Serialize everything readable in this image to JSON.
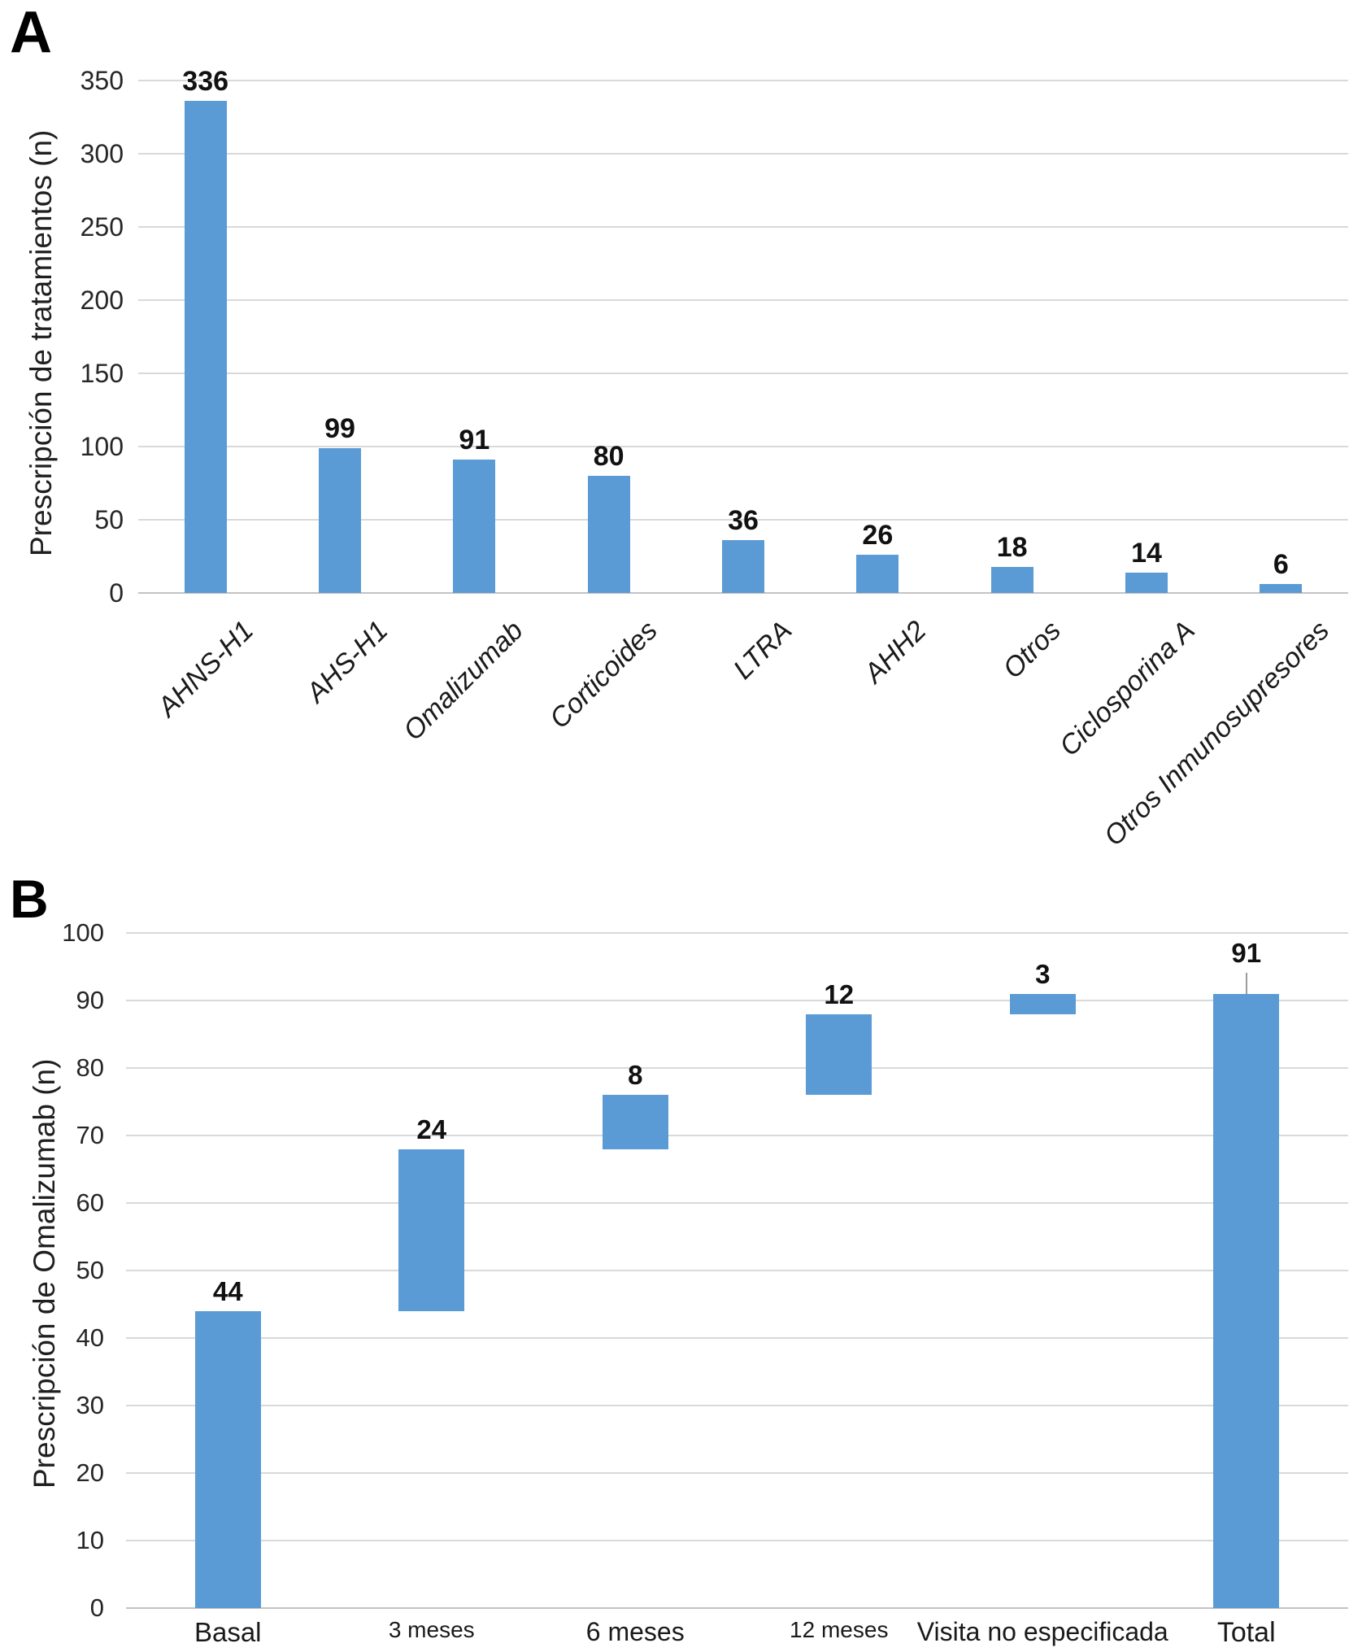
{
  "panel_a": {
    "letter": "A",
    "y_axis_title": "Prescripción de tratamientos (n)"
  },
  "panel_b": {
    "letter": "B",
    "y_axis_title": "Prescripción de Omalizumab (n)"
  },
  "chart_data": [
    {
      "id": "A",
      "type": "bar",
      "ylabel": "Prescripción de tratamientos (n)",
      "categories": [
        "AHNS-H1",
        "AHS-H1",
        "Omalizumab",
        "Corticoides",
        "LTRA",
        "AHH2",
        "Otros",
        "Ciclosporina A",
        "Otros Inmunosupresores"
      ],
      "values": [
        336,
        99,
        91,
        80,
        36,
        26,
        18,
        14,
        6
      ],
      "data_labels": [
        "336",
        "99",
        "91",
        "80",
        "36",
        "26",
        "18",
        "14",
        "6"
      ],
      "ylim": [
        0,
        350
      ],
      "ytick_step": 50,
      "yticks": [
        0,
        50,
        100,
        150,
        200,
        250,
        300,
        350
      ],
      "grid": true,
      "legend": false,
      "bar_color": "#5b9bd5",
      "gridline_color": "#d9d9d9"
    },
    {
      "id": "B",
      "type": "waterfall",
      "ylabel": "Prescripción de Omalizumab (n)",
      "categories": [
        "Basal",
        "3 meses",
        "6 meses",
        "12 meses",
        "Visita no especificada",
        "Total"
      ],
      "increments": [
        44,
        24,
        8,
        12,
        3
      ],
      "total": 91,
      "cumulative_spans": [
        [
          0,
          44
        ],
        [
          44,
          68
        ],
        [
          68,
          76
        ],
        [
          76,
          88
        ],
        [
          88,
          91
        ],
        [
          0,
          91
        ]
      ],
      "data_labels": [
        "44",
        "24",
        "8",
        "12",
        "3",
        "91"
      ],
      "ylim": [
        0,
        100
      ],
      "ytick_step": 10,
      "yticks": [
        0,
        10,
        20,
        30,
        40,
        50,
        60,
        70,
        80,
        90,
        100
      ],
      "grid": true,
      "legend": false,
      "bar_color": "#5b9bd5",
      "gridline_color": "#d9d9d9"
    }
  ]
}
